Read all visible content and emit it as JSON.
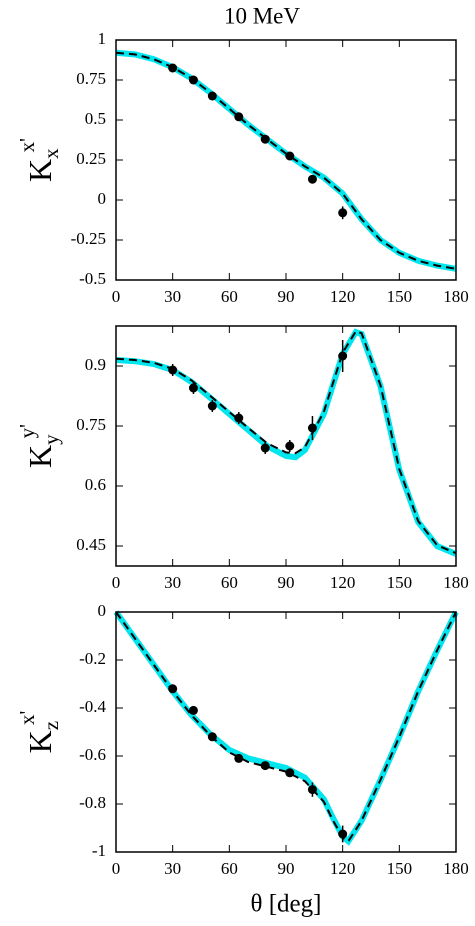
{
  "chart_data": [
    {
      "type": "line",
      "title": "10 MeV",
      "ylabel": {
        "base": "K",
        "sub": "x",
        "sup": "x'"
      },
      "xlim": [
        0,
        180
      ],
      "xticks": [
        0,
        30,
        60,
        90,
        120,
        150,
        180
      ],
      "ylim": [
        -0.5,
        1
      ],
      "yticks": [
        -0.5,
        -0.25,
        0,
        0.25,
        0.5,
        0.75,
        1
      ],
      "series": [
        {
          "style": "band",
          "color": "#00e5ee",
          "x": [
            0,
            10,
            20,
            30,
            40,
            50,
            60,
            70,
            80,
            90,
            100,
            110,
            120,
            130,
            140,
            150,
            160,
            170,
            180
          ],
          "values": [
            0.92,
            0.91,
            0.88,
            0.83,
            0.76,
            0.67,
            0.57,
            0.47,
            0.38,
            0.29,
            0.21,
            0.14,
            0.04,
            -0.12,
            -0.25,
            -0.33,
            -0.38,
            -0.41,
            -0.43
          ]
        },
        {
          "style": "dashed",
          "color": "#000000",
          "x": [
            0,
            10,
            20,
            30,
            40,
            50,
            60,
            70,
            80,
            90,
            100,
            110,
            120,
            130,
            140,
            150,
            160,
            170,
            180
          ],
          "values": [
            0.92,
            0.91,
            0.88,
            0.83,
            0.76,
            0.67,
            0.57,
            0.47,
            0.38,
            0.29,
            0.21,
            0.14,
            0.04,
            -0.12,
            -0.25,
            -0.33,
            -0.38,
            -0.41,
            -0.43
          ]
        },
        {
          "style": "points",
          "color": "#000000",
          "x": [
            30,
            41,
            51,
            65,
            79,
            92,
            104,
            120
          ],
          "values": [
            0.825,
            0.75,
            0.65,
            0.52,
            0.38,
            0.275,
            0.13,
            -0.08
          ],
          "errors": [
            0.02,
            0.02,
            0.02,
            0.02,
            0.02,
            0.02,
            0.025,
            0.04
          ]
        }
      ]
    },
    {
      "type": "line",
      "ylabel": {
        "base": "K",
        "sub": "y",
        "sup": "y'"
      },
      "xlim": [
        0,
        180
      ],
      "xticks": [
        0,
        30,
        60,
        90,
        120,
        150,
        180
      ],
      "ylim": [
        0.4,
        1.0
      ],
      "yticks": [
        0.45,
        0.6,
        0.75,
        0.9
      ],
      "series": [
        {
          "style": "band",
          "color": "#00e5ee",
          "x": [
            0,
            10,
            20,
            30,
            40,
            50,
            60,
            70,
            80,
            90,
            95,
            100,
            110,
            120,
            127,
            130,
            140,
            150,
            160,
            170,
            180
          ],
          "values": [
            0.915,
            0.912,
            0.905,
            0.89,
            0.86,
            0.82,
            0.78,
            0.74,
            0.7,
            0.675,
            0.672,
            0.69,
            0.78,
            0.93,
            0.985,
            0.98,
            0.85,
            0.64,
            0.51,
            0.45,
            0.43
          ]
        },
        {
          "style": "dashed",
          "color": "#000000",
          "x": [
            0,
            10,
            20,
            30,
            40,
            50,
            60,
            70,
            80,
            90,
            95,
            100,
            110,
            120,
            127,
            130,
            140,
            150,
            160,
            170,
            180
          ],
          "values": [
            0.918,
            0.915,
            0.908,
            0.893,
            0.864,
            0.825,
            0.785,
            0.745,
            0.707,
            0.684,
            0.682,
            0.697,
            0.785,
            0.933,
            0.987,
            0.982,
            0.852,
            0.642,
            0.512,
            0.452,
            0.432
          ]
        },
        {
          "style": "points",
          "color": "#000000",
          "x": [
            30,
            41,
            51,
            65,
            79,
            92,
            104,
            120
          ],
          "values": [
            0.89,
            0.845,
            0.8,
            0.77,
            0.695,
            0.7,
            0.745,
            0.925
          ],
          "errors": [
            0.015,
            0.015,
            0.015,
            0.015,
            0.015,
            0.015,
            0.03,
            0.04
          ]
        }
      ]
    },
    {
      "type": "line",
      "ylabel": {
        "base": "K",
        "sub": "z",
        "sup": "x'"
      },
      "xlabel": "θ [deg]",
      "xlim": [
        0,
        180
      ],
      "xticks": [
        0,
        30,
        60,
        90,
        120,
        150,
        180
      ],
      "ylim": [
        -1,
        0
      ],
      "yticks": [
        -1,
        -0.8,
        -0.6,
        -0.4,
        -0.2,
        0
      ],
      "series": [
        {
          "style": "band",
          "color": "#00e5ee",
          "x": [
            0,
            10,
            20,
            30,
            40,
            50,
            60,
            70,
            80,
            90,
            100,
            110,
            115,
            120,
            123,
            130,
            140,
            150,
            160,
            170,
            180
          ],
          "values": [
            0,
            -0.11,
            -0.22,
            -0.33,
            -0.43,
            -0.51,
            -0.575,
            -0.61,
            -0.63,
            -0.65,
            -0.69,
            -0.78,
            -0.86,
            -0.935,
            -0.955,
            -0.87,
            -0.7,
            -0.52,
            -0.33,
            -0.16,
            0
          ]
        },
        {
          "style": "dashed",
          "color": "#000000",
          "x": [
            0,
            10,
            20,
            30,
            40,
            50,
            60,
            70,
            80,
            90,
            100,
            110,
            115,
            120,
            123,
            130,
            140,
            150,
            160,
            170,
            180
          ],
          "values": [
            0,
            -0.11,
            -0.22,
            -0.33,
            -0.43,
            -0.515,
            -0.585,
            -0.625,
            -0.645,
            -0.665,
            -0.705,
            -0.79,
            -0.87,
            -0.94,
            -0.955,
            -0.87,
            -0.7,
            -0.52,
            -0.33,
            -0.16,
            0
          ]
        },
        {
          "style": "points",
          "color": "#000000",
          "x": [
            30,
            41,
            51,
            65,
            79,
            92,
            104,
            120
          ],
          "values": [
            -0.32,
            -0.41,
            -0.52,
            -0.61,
            -0.64,
            -0.67,
            -0.74,
            -0.925
          ],
          "errors": [
            0.015,
            0.015,
            0.015,
            0.015,
            0.015,
            0.015,
            0.03,
            0.035
          ]
        }
      ]
    }
  ]
}
